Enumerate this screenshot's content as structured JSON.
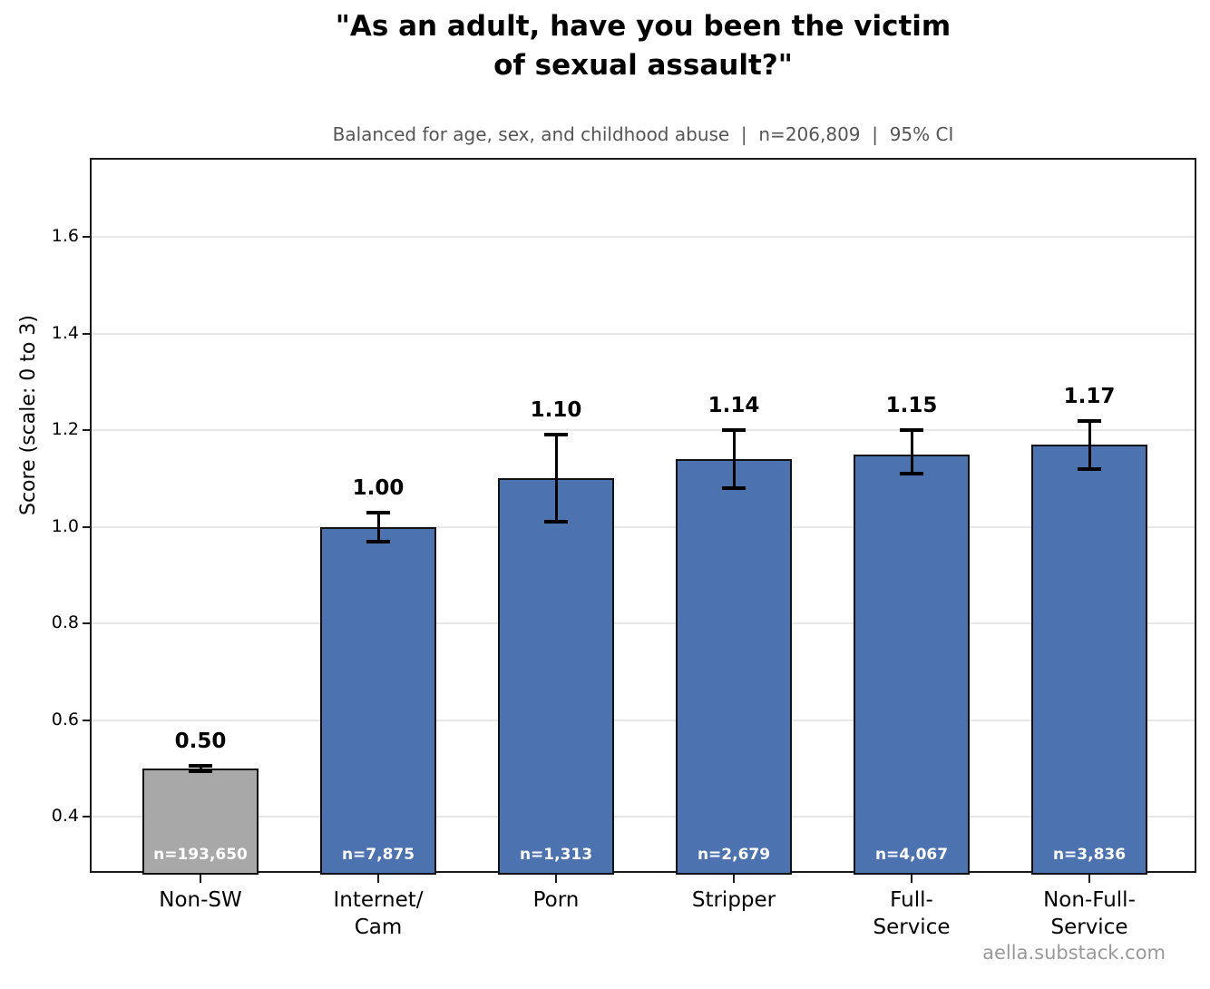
{
  "header": {
    "title": "\"As an adult, have you been the victim\nof sexual assault?\"",
    "subtitle": "Balanced for age, sex, and childhood abuse  |  n=206,809  |  95% CI"
  },
  "footer": {
    "watermark": "aella.substack.com"
  },
  "chart_data": {
    "type": "bar",
    "title": "\"As an adult, have you been the victim of sexual assault?\"",
    "subtitle": "Balanced for age, sex, and childhood abuse | n=206,809 | 95% CI",
    "xlabel": "",
    "ylabel": "Score (scale: 0 to 3)",
    "ylim": [
      0.28,
      1.76
    ],
    "yticks": [
      0.4,
      0.6,
      0.8,
      1.0,
      1.2,
      1.4,
      1.6
    ],
    "ytick_labels": [
      "0.4",
      "0.6",
      "0.8",
      "1.0",
      "1.2",
      "1.4",
      "1.6"
    ],
    "grid": "horizontal",
    "legend": "none",
    "categories": [
      "Non-SW",
      "Internet/\nCam",
      "Porn",
      "Stripper",
      "Full-\nService",
      "Non-Full-\nService"
    ],
    "values": [
      0.5,
      1.0,
      1.1,
      1.14,
      1.15,
      1.17
    ],
    "value_labels": [
      "0.50",
      "1.00",
      "1.10",
      "1.14",
      "1.15",
      "1.17"
    ],
    "ci_low": [
      0.495,
      0.97,
      1.01,
      1.08,
      1.11,
      1.12
    ],
    "ci_high": [
      0.505,
      1.03,
      1.19,
      1.2,
      1.2,
      1.22
    ],
    "n_labels": [
      "n=193,650",
      "n=7,875",
      "n=1,313",
      "n=2,679",
      "n=4,067",
      "n=3,836"
    ],
    "bar_colors": [
      "#a8a8a8",
      "#4c72b0",
      "#4c72b0",
      "#4c72b0",
      "#4c72b0",
      "#4c72b0"
    ],
    "edge_color": "#111111",
    "error_color": "#000000",
    "grid_color": "#e7e7e7"
  }
}
